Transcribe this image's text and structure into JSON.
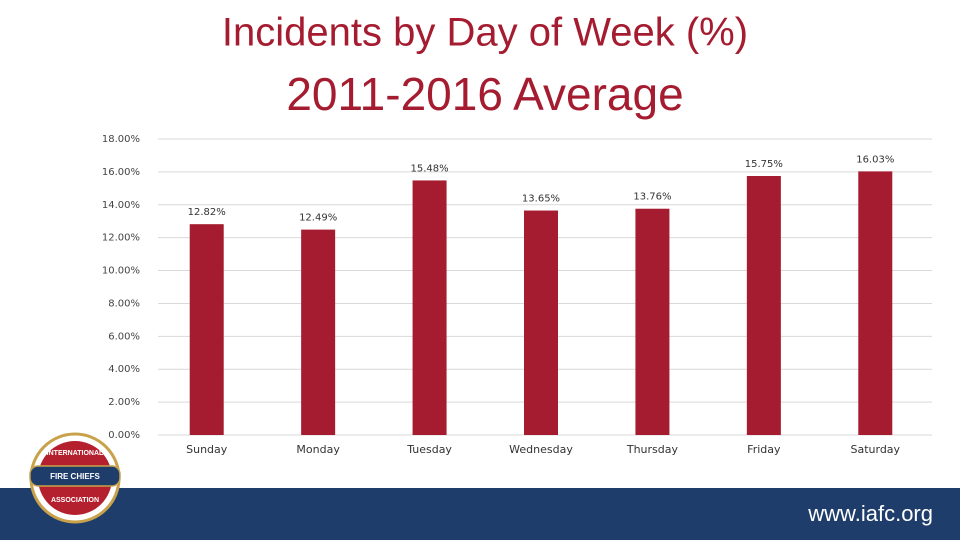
{
  "chart_data": {
    "type": "bar",
    "title": "Incidents by Day of Week (%)",
    "subtitle": "2011-2016 Average",
    "categories": [
      "Sunday",
      "Monday",
      "Tuesday",
      "Wednesday",
      "Thursday",
      "Friday",
      "Saturday"
    ],
    "values": [
      12.82,
      12.49,
      15.48,
      13.65,
      13.76,
      15.75,
      16.03
    ],
    "value_labels": [
      "12.82%",
      "12.49%",
      "15.48%",
      "13.65%",
      "13.76%",
      "15.75%",
      "16.03%"
    ],
    "color": "#a51c30",
    "ylim": [
      0,
      18
    ],
    "yticks": [
      {
        "value": 0,
        "label": "0.00%"
      },
      {
        "value": 2,
        "label": "2.00%"
      },
      {
        "value": 4,
        "label": "4.00%"
      },
      {
        "value": 6,
        "label": "6.00%"
      },
      {
        "value": 8,
        "label": "8.00%"
      },
      {
        "value": 10,
        "label": "10.00%"
      },
      {
        "value": 12,
        "label": "12.00%"
      },
      {
        "value": 14,
        "label": "14.00%"
      },
      {
        "value": 16,
        "label": "16.00%"
      },
      {
        "value": 18,
        "label": "18.00%"
      }
    ],
    "grid": true
  },
  "footer": {
    "url": "www.iafc.org"
  },
  "logo": {
    "top": "INTERNATIONAL",
    "middle": "FIRE CHIEFS",
    "bottom": "ASSOCIATION"
  }
}
